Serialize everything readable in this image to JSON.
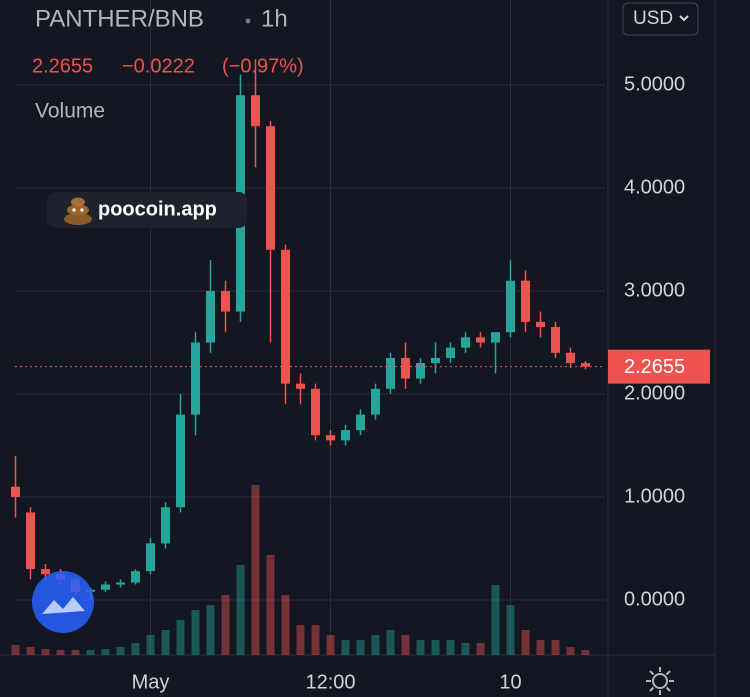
{
  "chart_data": {
    "type": "candlestick",
    "symbol": "PANTHER/BNB",
    "interval": "1h",
    "currency": "USD",
    "last_price": 2.2655,
    "change": "−0.0222",
    "change_pct": "(−0.97%)",
    "volume_label": "Volume",
    "watermark": "poocoin.app",
    "up_color": "#26a69a",
    "down_color": "#ef5350",
    "categories": [
      null,
      null,
      null,
      null,
      null,
      null,
      null,
      null,
      null,
      "May",
      null,
      null,
      null,
      null,
      null,
      null,
      null,
      null,
      null,
      null,
      null,
      "12:00",
      null,
      null,
      null,
      null,
      null,
      null,
      null,
      null,
      null,
      null,
      null,
      "10",
      null,
      null,
      null,
      null,
      null
    ],
    "open": [
      1.1,
      0.85,
      0.3,
      0.25,
      0.2,
      0.08,
      0.1,
      0.15,
      0.17,
      0.28,
      0.55,
      0.9,
      1.8,
      2.5,
      3.0,
      2.8,
      4.9,
      4.6,
      3.4,
      2.1,
      2.05,
      1.6,
      1.55,
      1.65,
      1.8,
      2.05,
      2.35,
      2.15,
      2.3,
      2.35,
      2.45,
      2.55,
      2.5,
      2.6,
      3.1,
      2.7,
      2.65,
      2.4,
      2.3
    ],
    "high": [
      1.4,
      0.9,
      0.35,
      0.3,
      0.22,
      0.12,
      0.18,
      0.2,
      0.3,
      0.6,
      0.95,
      2.0,
      2.6,
      3.3,
      3.1,
      5.1,
      5.25,
      4.65,
      3.45,
      2.2,
      2.1,
      1.65,
      1.7,
      1.85,
      2.1,
      2.4,
      2.5,
      2.35,
      2.5,
      2.5,
      2.6,
      2.6,
      2.6,
      3.3,
      3.2,
      2.8,
      2.7,
      2.45,
      2.32
    ],
    "low": [
      0.8,
      0.2,
      0.18,
      0.15,
      0.05,
      0.0,
      0.08,
      0.12,
      0.15,
      0.25,
      0.5,
      0.85,
      1.6,
      2.4,
      2.6,
      2.7,
      4.2,
      2.5,
      1.9,
      1.9,
      1.55,
      1.5,
      1.5,
      1.6,
      1.75,
      2.0,
      2.05,
      2.1,
      2.2,
      2.3,
      2.4,
      2.45,
      2.2,
      2.55,
      2.6,
      2.55,
      2.35,
      2.25,
      2.24
    ],
    "close": [
      1.0,
      0.3,
      0.25,
      0.2,
      0.08,
      0.1,
      0.15,
      0.17,
      0.28,
      0.55,
      0.9,
      1.8,
      2.5,
      3.0,
      2.8,
      4.9,
      4.6,
      3.4,
      2.1,
      2.05,
      1.6,
      1.55,
      1.65,
      1.8,
      2.05,
      2.35,
      2.15,
      2.3,
      2.35,
      2.45,
      2.55,
      2.5,
      2.6,
      3.1,
      2.7,
      2.65,
      2.4,
      2.3,
      2.2655
    ],
    "volume": [
      10,
      8,
      6,
      5,
      5,
      5,
      6,
      8,
      12,
      20,
      25,
      35,
      45,
      50,
      60,
      90,
      170,
      100,
      60,
      30,
      30,
      20,
      15,
      15,
      20,
      25,
      20,
      15,
      15,
      15,
      12,
      12,
      70,
      50,
      25,
      15,
      15,
      8,
      5
    ],
    "ylim": [
      -0.534,
      5.825
    ],
    "yticks": [
      {
        "value": 0,
        "label": "0.0000"
      },
      {
        "value": 1,
        "label": "1.0000"
      },
      {
        "value": 2,
        "label": "2.0000"
      },
      {
        "value": 3,
        "label": "3.0000"
      },
      {
        "value": 4,
        "label": "4.0000"
      },
      {
        "value": 5,
        "label": "5.0000"
      }
    ],
    "grid": true
  }
}
